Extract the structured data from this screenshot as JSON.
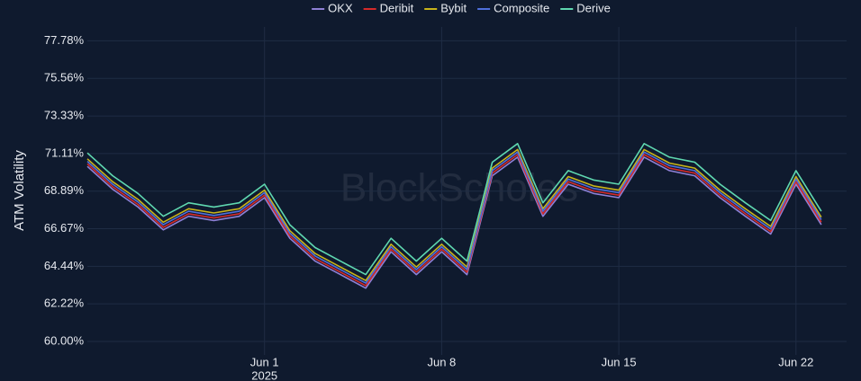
{
  "chart_data": {
    "type": "line",
    "watermark": "BlockScholes",
    "ylabel": "ATM Volatility",
    "x": [
      "2025-05-25",
      "2025-05-26",
      "2025-05-27",
      "2025-05-28",
      "2025-05-29",
      "2025-05-30",
      "2025-05-31",
      "2025-06-01",
      "2025-06-02",
      "2025-06-03",
      "2025-06-04",
      "2025-06-05",
      "2025-06-06",
      "2025-06-07",
      "2025-06-08",
      "2025-06-09",
      "2025-06-10",
      "2025-06-11",
      "2025-06-12",
      "2025-06-13",
      "2025-06-14",
      "2025-06-15",
      "2025-06-16",
      "2025-06-17",
      "2025-06-18",
      "2025-06-19",
      "2025-06-20",
      "2025-06-21",
      "2025-06-22",
      "2025-06-23"
    ],
    "xlim": [
      "2025-05-25",
      "2025-06-24"
    ],
    "xticks": [
      {
        "value": "2025-06-01",
        "label": "Jun 1"
      },
      {
        "value": "2025-06-08",
        "label": "Jun 8"
      },
      {
        "value": "2025-06-15",
        "label": "Jun 15"
      },
      {
        "value": "2025-06-22",
        "label": "Jun 22"
      }
    ],
    "x_year_label": "2025",
    "ylim": [
      59.2,
      78.6
    ],
    "yticks": [
      {
        "value": 60,
        "label": "60.00%"
      },
      {
        "value": 62.22,
        "label": "62.22%"
      },
      {
        "value": 64.44,
        "label": "64.44%"
      },
      {
        "value": 66.67,
        "label": "66.67%"
      },
      {
        "value": 68.89,
        "label": "68.89%"
      },
      {
        "value": 71.11,
        "label": "71.11%"
      },
      {
        "value": 73.33,
        "label": "73.33%"
      },
      {
        "value": 75.56,
        "label": "75.56%"
      },
      {
        "value": 77.78,
        "label": "77.78%"
      }
    ],
    "grid": true,
    "legend": "top",
    "series": [
      {
        "name": "OKX",
        "color": "#8e80d6",
        "values": [
          70.35,
          69.0,
          67.95,
          66.6,
          67.4,
          67.15,
          67.4,
          68.5,
          66.1,
          64.75,
          63.95,
          63.15,
          65.3,
          63.95,
          65.3,
          63.95,
          69.8,
          70.9,
          67.4,
          69.3,
          68.75,
          68.5,
          70.9,
          70.1,
          69.8,
          68.5,
          67.4,
          66.35,
          69.3,
          66.9
        ]
      },
      {
        "name": "Deribit",
        "color": "#d62a2a",
        "values": [
          70.5,
          69.15,
          68.1,
          66.75,
          67.55,
          67.3,
          67.55,
          68.65,
          66.25,
          64.9,
          64.1,
          63.3,
          65.45,
          64.1,
          65.45,
          64.1,
          69.95,
          71.05,
          67.55,
          69.45,
          68.9,
          68.65,
          71.05,
          70.25,
          69.95,
          68.65,
          67.55,
          66.5,
          69.45,
          67.05
        ]
      },
      {
        "name": "Bybit",
        "color": "#c9b41a",
        "values": [
          70.8,
          69.45,
          68.4,
          67.05,
          67.85,
          67.6,
          67.85,
          68.95,
          66.55,
          65.2,
          64.4,
          63.6,
          65.75,
          64.4,
          65.75,
          64.4,
          70.25,
          71.35,
          67.85,
          69.75,
          69.2,
          68.95,
          71.35,
          70.55,
          70.25,
          68.95,
          67.85,
          66.8,
          69.75,
          67.35
        ]
      },
      {
        "name": "Composite",
        "color": "#4f6fdc",
        "values": [
          70.65,
          69.3,
          68.25,
          66.9,
          67.7,
          67.45,
          67.7,
          68.8,
          66.4,
          65.05,
          64.25,
          63.45,
          65.6,
          64.25,
          65.6,
          64.25,
          70.1,
          71.2,
          67.7,
          69.6,
          69.05,
          68.8,
          71.2,
          70.4,
          70.1,
          68.8,
          67.7,
          66.65,
          69.6,
          67.2
        ]
      },
      {
        "name": "Derive",
        "color": "#5fd8b0",
        "values": [
          71.15,
          69.8,
          68.75,
          67.4,
          68.2,
          67.95,
          68.2,
          69.3,
          66.9,
          65.55,
          64.75,
          63.95,
          66.1,
          64.75,
          66.1,
          64.75,
          70.6,
          71.7,
          68.2,
          70.1,
          69.55,
          69.3,
          71.7,
          70.9,
          70.6,
          69.3,
          68.2,
          67.15,
          70.1,
          67.7
        ]
      }
    ]
  }
}
